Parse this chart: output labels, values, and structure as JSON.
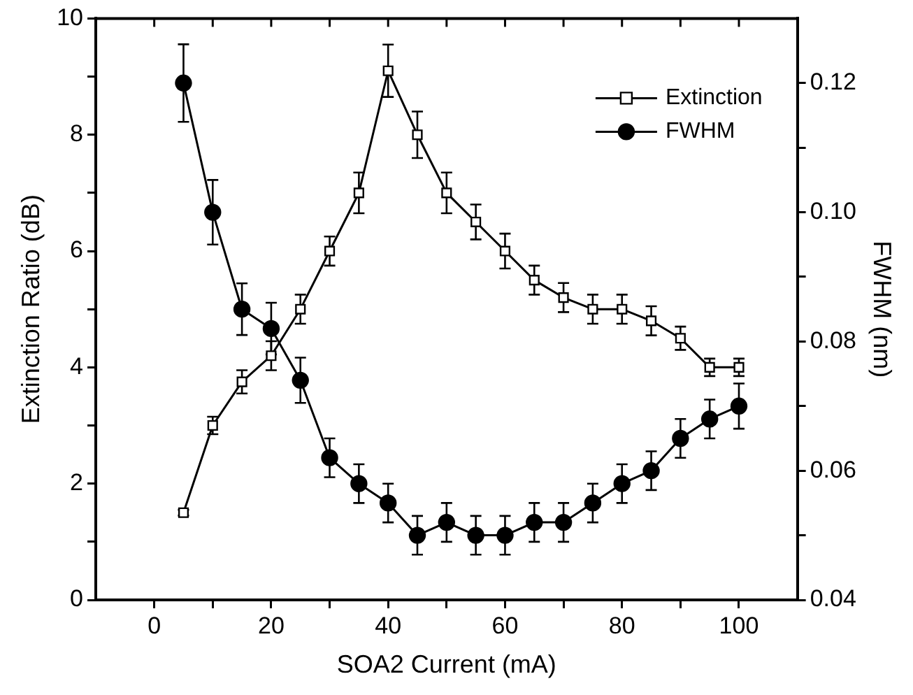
{
  "chart_data": {
    "type": "line",
    "xlabel": "SOA2 Current (mA)",
    "ylabel": "Extinction Ratio (dB)",
    "y2label": "FWHM (nm)",
    "x": [
      5,
      10,
      15,
      20,
      25,
      30,
      35,
      40,
      45,
      50,
      55,
      60,
      65,
      70,
      75,
      80,
      85,
      90,
      95,
      100
    ],
    "series": [
      {
        "name": "Extinction",
        "color": "#000000",
        "marker": "square",
        "values": [
          1.5,
          3.0,
          3.75,
          4.2,
          5.0,
          6.0,
          7.0,
          9.1,
          8.0,
          7.0,
          6.5,
          6.0,
          5.5,
          5.2,
          5.0,
          5.0,
          4.8,
          4.5,
          4.0,
          4.0
        ],
        "errors": [
          0.05,
          0.15,
          0.2,
          0.25,
          0.25,
          0.25,
          0.35,
          0.45,
          0.4,
          0.35,
          0.3,
          0.3,
          0.25,
          0.25,
          0.25,
          0.25,
          0.25,
          0.2,
          0.15,
          0.15
        ]
      },
      {
        "name": "FWHM",
        "color": "#000000",
        "marker": "circle",
        "axis": "y2",
        "values": [
          0.12,
          0.1,
          0.085,
          0.082,
          0.074,
          0.062,
          0.058,
          0.055,
          0.05,
          0.052,
          0.05,
          0.05,
          0.052,
          0.052,
          0.055,
          0.058,
          0.06,
          0.065,
          0.068,
          0.07
        ],
        "errors": [
          0.006,
          0.005,
          0.004,
          0.004,
          0.0035,
          0.003,
          0.003,
          0.003,
          0.003,
          0.003,
          0.003,
          0.003,
          0.003,
          0.003,
          0.003,
          0.003,
          0.003,
          0.003,
          0.003,
          0.0035
        ]
      }
    ],
    "xlim": [
      -10,
      110
    ],
    "xticks": [
      0,
      {
        "value": 10,
        "label": null
      },
      20,
      {
        "value": 30,
        "label": null
      },
      40,
      {
        "value": 50,
        "label": null
      },
      60,
      {
        "value": 70,
        "label": null
      },
      80,
      {
        "value": 90,
        "label": null
      },
      100
    ],
    "ylim": [
      0,
      10
    ],
    "yticks": [
      0,
      {
        "value": 1,
        "label": null
      },
      2,
      {
        "value": 3,
        "label": null
      },
      4,
      {
        "value": 5,
        "label": null
      },
      6,
      {
        "value": 7,
        "label": null
      },
      8,
      {
        "value": 9,
        "label": null
      },
      10
    ],
    "y2lim": [
      0.04,
      0.13
    ],
    "y2ticks": [
      {
        "value": 0.04,
        "label": "0.04"
      },
      {
        "value": 0.05,
        "label": null
      },
      {
        "value": 0.06,
        "label": "0.06"
      },
      {
        "value": 0.07,
        "label": null
      },
      {
        "value": 0.08,
        "label": "0.08"
      },
      {
        "value": 0.09,
        "label": null
      },
      {
        "value": 0.1,
        "label": "0.10"
      },
      {
        "value": 0.11,
        "label": null
      },
      {
        "value": 0.12,
        "label": "0.12"
      }
    ],
    "legend": "top right",
    "grid": false,
    "line_style": "solid"
  }
}
